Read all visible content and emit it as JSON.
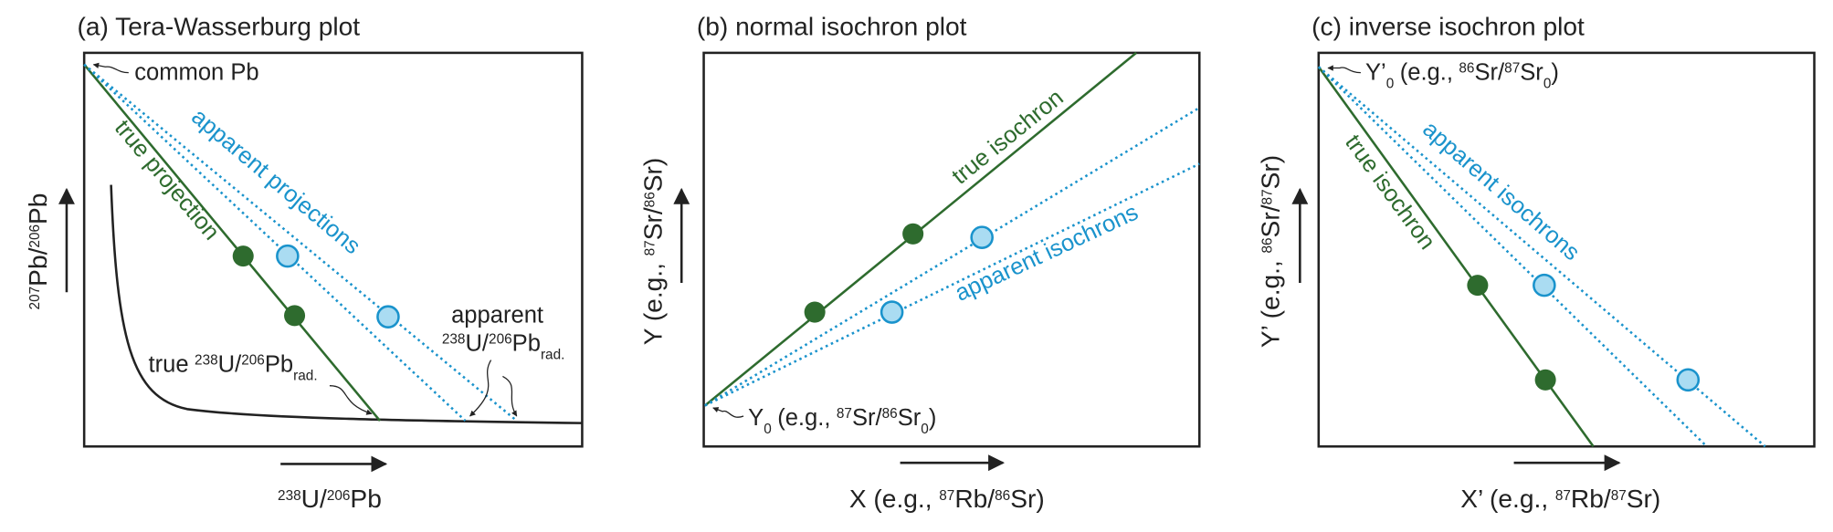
{
  "panels": [
    {
      "title": "(a) Tera-Wasserburg plot",
      "y_label": [
        "207",
        "Pb/",
        "206",
        "Pb"
      ],
      "x_label": [
        "238",
        "U/",
        "206",
        "Pb"
      ],
      "origin_label": [
        "common Pb"
      ],
      "true_label": "true projection",
      "apparent_label": "apparent projections",
      "true_ratio": [
        "true",
        "238",
        "U/",
        "206",
        "Pb",
        "rad."
      ],
      "apparent_ratio": [
        "apparent",
        "238",
        "U/",
        "206",
        "Pb",
        "rad."
      ]
    },
    {
      "title": "(b) normal isochron plot",
      "y_label": [
        "Y (e.g.,",
        "87",
        "Sr/",
        "86",
        "Sr)"
      ],
      "x_label": [
        "X (e.g.,",
        "87",
        "Rb/",
        "86",
        "Sr)"
      ],
      "origin_label": [
        "Y",
        "0",
        "(e.g.,",
        "87",
        "Sr/",
        "86",
        "Sr",
        "0",
        ")"
      ],
      "true_label": "true isochron",
      "apparent_label": "apparent isochrons"
    },
    {
      "title": "(c) inverse isochron plot",
      "y_label": [
        "Y’ (e.g.,",
        "86",
        "Sr/",
        "87",
        "Sr)"
      ],
      "x_label": [
        "X’ (e.g.,",
        "87",
        "Rb/",
        "87",
        "Sr)"
      ],
      "origin_label": [
        "Y’",
        "0",
        "(e.g.,",
        "86",
        "Sr/",
        "87",
        "Sr",
        "0",
        ")"
      ],
      "true_label": "true isochron",
      "apparent_label": "apparent isochrons"
    }
  ]
}
